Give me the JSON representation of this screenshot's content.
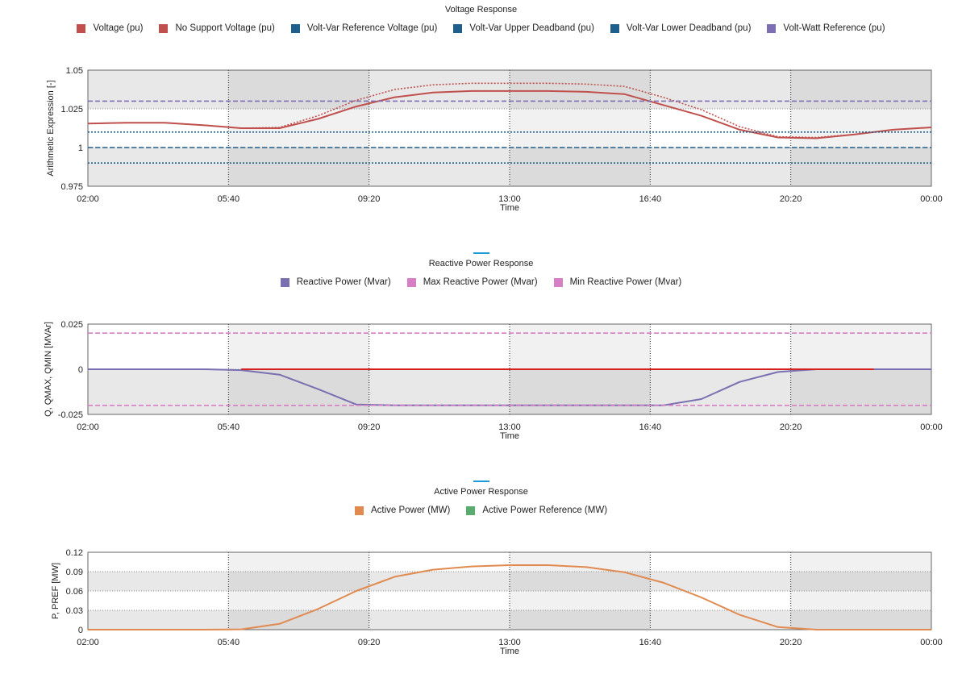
{
  "colors": {
    "voltage": "#c0504d",
    "volt_var": "#1f5f8b",
    "volt_watt": "#7e6fb4",
    "reactive": "#7a6fb0",
    "reactive_limits": "#d77fc4",
    "red_zero": "#d62020",
    "active": "#e08a4f",
    "active_ref": "#5aab6e",
    "accent": "#1a9bd7"
  },
  "chart_data": [
    {
      "type": "line",
      "title": "Voltage Response",
      "xlabel": "Time",
      "ylabel": "Arithmetic Expression [-]",
      "ylim": [
        0.975,
        1.05
      ],
      "yticks": [
        "0.975",
        "1",
        "1.025",
        "1.05"
      ],
      "ytick_values": [
        0.975,
        1,
        1.025,
        1.05
      ],
      "xticks": [
        "02:00",
        "05:40",
        "09:20",
        "13:00",
        "16:40",
        "20:20",
        "00:00"
      ],
      "xlim_hours": [
        2,
        24
      ],
      "grid": true,
      "legend_placement": "top",
      "series": [
        {
          "name": "Voltage (pu)",
          "color": "#c0504d",
          "style": "solid",
          "x": [
            2,
            3,
            4,
            5,
            6,
            7,
            8,
            9,
            10,
            11,
            12,
            13,
            14,
            15,
            16,
            17,
            18,
            19,
            20,
            21,
            22,
            23,
            24
          ],
          "values": [
            1.0155,
            1.016,
            1.016,
            1.0145,
            1.0125,
            1.0125,
            1.0185,
            1.0265,
            1.0325,
            1.0355,
            1.0365,
            1.0365,
            1.0365,
            1.036,
            1.0345,
            1.0275,
            1.0205,
            1.0115,
            1.0065,
            1.006,
            1.0085,
            1.0115,
            1.013
          ]
        },
        {
          "name": "No Support Voltage (pu)",
          "color": "#c0504d",
          "style": "dotted",
          "x": [
            2,
            3,
            4,
            5,
            6,
            7,
            8,
            9,
            10,
            11,
            12,
            13,
            14,
            15,
            16,
            17,
            18,
            19,
            20,
            21,
            22,
            23,
            24
          ],
          "values": [
            1.0155,
            1.016,
            1.016,
            1.0145,
            1.0125,
            1.013,
            1.0205,
            1.0305,
            1.0375,
            1.0405,
            1.0415,
            1.0415,
            1.0415,
            1.041,
            1.0395,
            1.0325,
            1.0245,
            1.0135,
            1.007,
            1.0065,
            1.0085,
            1.0115,
            1.013
          ]
        },
        {
          "name": "Volt-Var Reference Voltage (pu)",
          "color": "#1f5f8b",
          "style": "dashed",
          "x": [
            2,
            24
          ],
          "values": [
            1.0,
            1.0
          ]
        },
        {
          "name": "Volt-Var Upper Deadband (pu)",
          "color": "#1f5f8b",
          "style": "dotted",
          "x": [
            2,
            24
          ],
          "values": [
            1.01,
            1.01
          ]
        },
        {
          "name": "Volt-Var Lower Deadband (pu)",
          "color": "#1f5f8b",
          "style": "dotted",
          "x": [
            2,
            24
          ],
          "values": [
            0.99,
            0.99
          ]
        },
        {
          "name": "Volt-Watt Reference (pu)",
          "color": "#7e6fb4",
          "style": "dashed",
          "x": [
            2,
            24
          ],
          "values": [
            1.03,
            1.03
          ]
        }
      ]
    },
    {
      "type": "line",
      "title": "Reactive Power Response",
      "xlabel": "Time",
      "ylabel": "Q, QMAX, QMIN [MVAr]",
      "ylim": [
        -0.025,
        0.025
      ],
      "yticks": [
        "-0.025",
        "0",
        "0.025"
      ],
      "ytick_values": [
        -0.025,
        0,
        0.025
      ],
      "xticks": [
        "02:00",
        "05:40",
        "09:20",
        "13:00",
        "16:40",
        "20:20",
        "00:00"
      ],
      "xlim_hours": [
        2,
        24
      ],
      "grid": true,
      "legend_placement": "top",
      "series": [
        {
          "name": "Reactive Power (Mvar)",
          "color": "#7a6fb0",
          "style": "solid",
          "x": [
            2,
            3,
            4,
            5,
            6,
            7,
            8,
            9,
            10,
            11,
            12,
            13,
            14,
            15,
            16,
            17,
            18,
            19,
            20,
            21,
            22,
            23,
            24
          ],
          "values": [
            0,
            0,
            0,
            0,
            -0.0005,
            -0.003,
            -0.011,
            -0.0195,
            -0.02,
            -0.02,
            -0.02,
            -0.02,
            -0.02,
            -0.02,
            -0.02,
            -0.02,
            -0.0165,
            -0.007,
            -0.0015,
            0,
            0,
            0,
            0
          ]
        },
        {
          "name": "Max Reactive Power (Mvar)",
          "color": "#d77fc4",
          "style": "dashed",
          "x": [
            2,
            24
          ],
          "values": [
            0.02,
            0.02
          ]
        },
        {
          "name": "Min Reactive Power (Mvar)",
          "color": "#d77fc4",
          "style": "dashed",
          "x": [
            2,
            24
          ],
          "values": [
            -0.02,
            -0.02
          ]
        },
        {
          "color": "#d62020",
          "style": "solid",
          "x": [
            6,
            22.5
          ],
          "values": [
            0,
            0
          ]
        }
      ]
    },
    {
      "type": "line",
      "title": "Active Power Response",
      "xlabel": "Time",
      "ylabel": "P, PREF [MW]",
      "ylim": [
        0,
        0.12
      ],
      "yticks": [
        "0",
        "0.03",
        "0.06",
        "0.09",
        "0.12"
      ],
      "ytick_values": [
        0,
        0.03,
        0.06,
        0.09,
        0.12
      ],
      "xticks": [
        "02:00",
        "05:40",
        "09:20",
        "13:00",
        "16:40",
        "20:20",
        "00:00"
      ],
      "xlim_hours": [
        2,
        24
      ],
      "grid": true,
      "legend_placement": "top",
      "series": [
        {
          "name": "Active Power (MW)",
          "color": "#e08a4f",
          "style": "solid",
          "x": [
            2,
            3,
            4,
            5,
            6,
            7,
            8,
            9,
            10,
            11,
            12,
            13,
            14,
            15,
            16,
            17,
            18,
            19,
            20,
            21,
            22,
            23,
            24
          ],
          "values": [
            0,
            0,
            0,
            0,
            0.0005,
            0.009,
            0.032,
            0.06,
            0.082,
            0.093,
            0.098,
            0.1,
            0.1,
            0.097,
            0.089,
            0.073,
            0.05,
            0.023,
            0.004,
            0,
            0,
            0,
            0
          ]
        },
        {
          "name": "Active Power Reference (MW)",
          "color": "#5aab6e",
          "style": "solid",
          "x": [],
          "values": []
        }
      ]
    }
  ]
}
